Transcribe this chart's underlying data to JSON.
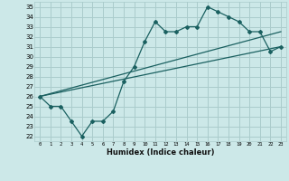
{
  "xlabel": "Humidex (Indice chaleur)",
  "bg_color": "#cce8e8",
  "grid_color": "#aacccc",
  "line_color": "#1a6060",
  "xlim": [
    -0.5,
    23.5
  ],
  "ylim": [
    21.5,
    35.5
  ],
  "xticks": [
    0,
    1,
    2,
    3,
    4,
    5,
    6,
    7,
    8,
    9,
    10,
    11,
    12,
    13,
    14,
    15,
    16,
    17,
    18,
    19,
    20,
    21,
    22,
    23
  ],
  "yticks": [
    22,
    23,
    24,
    25,
    26,
    27,
    28,
    29,
    30,
    31,
    32,
    33,
    34,
    35
  ],
  "line1_x": [
    0,
    1,
    2,
    3,
    4,
    5,
    6,
    7,
    8,
    9,
    10,
    11,
    12,
    13,
    14,
    15,
    16,
    17,
    18,
    19,
    20,
    21,
    22,
    23
  ],
  "line1_y": [
    26.0,
    25.0,
    25.0,
    23.5,
    22.0,
    23.5,
    23.5,
    24.5,
    27.5,
    29.0,
    31.5,
    33.5,
    32.5,
    32.5,
    33.0,
    33.0,
    35.0,
    34.5,
    34.0,
    33.5,
    32.5,
    32.5,
    30.5,
    31.0
  ],
  "line2_x": [
    0,
    23
  ],
  "line2_y": [
    26.0,
    32.5
  ],
  "line3_x": [
    0,
    23
  ],
  "line3_y": [
    26.0,
    31.0
  ]
}
